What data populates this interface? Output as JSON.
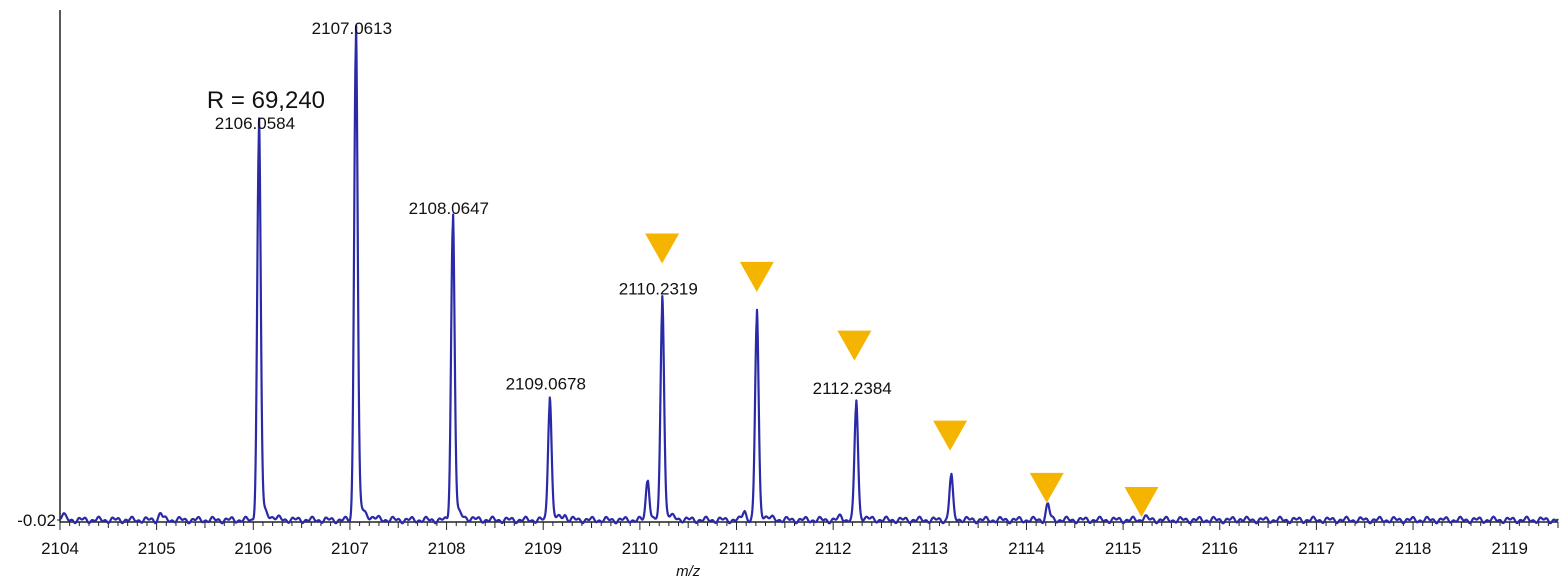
{
  "chart_data": {
    "type": "line",
    "title": "",
    "xlabel": "m/z",
    "ylabel": "",
    "xlim": [
      2104,
      2119.5
    ],
    "ylim": [
      -0.02,
      1.0
    ],
    "x_ticks": [
      "2104",
      "2105",
      "2106",
      "2107",
      "2108",
      "2109",
      "2110",
      "2111",
      "2112",
      "2113",
      "2114",
      "2115",
      "2116",
      "2117",
      "2118",
      "2119"
    ],
    "y_tick_label": "-0.02",
    "resolution_label": "R = 69,240",
    "line_color": "#2a2aa8",
    "marker_color": "#f4b400",
    "baseline": 0.0,
    "peaks": [
      {
        "x": 2104.03,
        "y": 0.012
      },
      {
        "x": 2105.04,
        "y": 0.014
      },
      {
        "x": 2106.0584,
        "y": 0.8,
        "label": "2106.0584"
      },
      {
        "x": 2107.0613,
        "y": 1.0,
        "label": "2107.0613"
      },
      {
        "x": 2108.0647,
        "y": 0.62,
        "label": "2108.0647"
      },
      {
        "x": 2109.0678,
        "y": 0.25,
        "label": "2109.0678"
      },
      {
        "x": 2109.22,
        "y": 0.01
      },
      {
        "x": 2110.08,
        "y": 0.085
      },
      {
        "x": 2110.2319,
        "y": 0.45,
        "label": "2110.2319"
      },
      {
        "x": 2111.08,
        "y": 0.02
      },
      {
        "x": 2111.21,
        "y": 0.42
      },
      {
        "x": 2112.08,
        "y": 0.008
      },
      {
        "x": 2112.2384,
        "y": 0.24,
        "label": "2112.2384"
      },
      {
        "x": 2113.22,
        "y": 0.09
      },
      {
        "x": 2114.22,
        "y": 0.032
      },
      {
        "x": 2115.22,
        "y": 0.008
      },
      {
        "x": 2116.22,
        "y": 0.003
      }
    ],
    "markers": [
      {
        "x": 2110.23,
        "y": 0.575
      },
      {
        "x": 2111.21,
        "y": 0.515
      },
      {
        "x": 2112.22,
        "y": 0.37
      },
      {
        "x": 2113.21,
        "y": 0.18
      },
      {
        "x": 2114.21,
        "y": 0.07
      },
      {
        "x": 2115.19,
        "y": 0.04
      }
    ],
    "grid": false,
    "legend": "none"
  }
}
